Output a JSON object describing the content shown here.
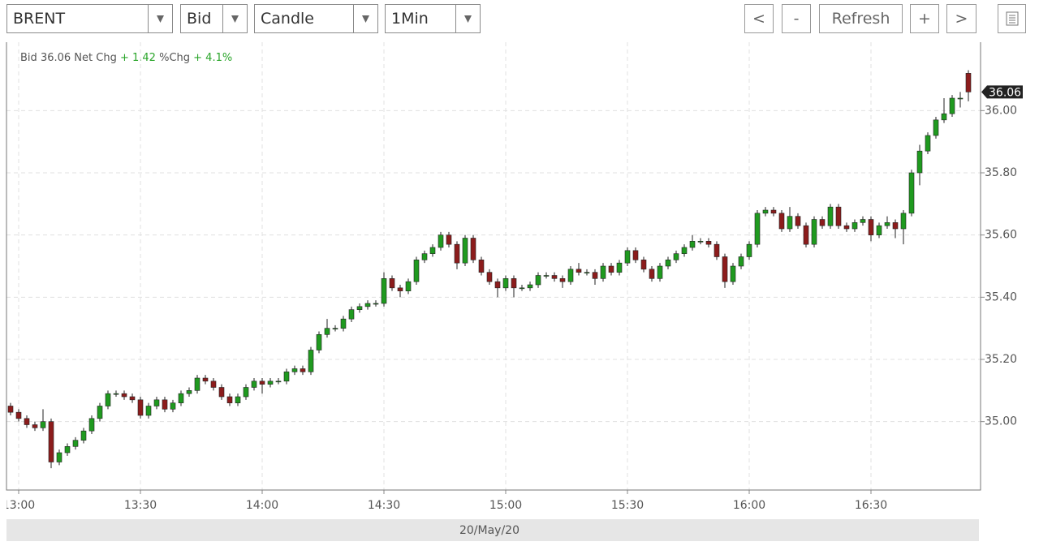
{
  "toolbar": {
    "symbol": "BRENT",
    "side": "Bid",
    "style": "Candle",
    "interval": "1Min",
    "buttons": [
      "<",
      "-",
      "Refresh",
      "+",
      ">"
    ]
  },
  "chart_data": {
    "type": "candlestick",
    "header": {
      "bid_label": "Bid",
      "bid": "36.06",
      "net_chg_label": "Net Chg",
      "net_chg": "+ 1.42",
      "pct_chg_label": "%Chg",
      "pct_chg": "+ 4.1%"
    },
    "x_label": "20/May/20",
    "last_price": 36.06,
    "up_color": "#1f9a1f",
    "down_color": "#8c1c1c",
    "grid": true,
    "xlim": [
      777,
      1017
    ],
    "xticks": [
      {
        "value": 780,
        "label": "13:00"
      },
      {
        "value": 810,
        "label": "13:30"
      },
      {
        "value": 840,
        "label": "14:00"
      },
      {
        "value": 870,
        "label": "14:30"
      },
      {
        "value": 900,
        "label": "15:00"
      },
      {
        "value": 930,
        "label": "15:30"
      },
      {
        "value": 960,
        "label": "16:00"
      },
      {
        "value": 990,
        "label": "16:30"
      }
    ],
    "ylim": [
      34.78,
      36.22
    ],
    "yticks": [
      {
        "value": 35,
        "label": "35.00"
      },
      {
        "value": 35.2,
        "label": "35.20"
      },
      {
        "value": 35.4,
        "label": "35.40"
      },
      {
        "value": 35.6,
        "label": "35.60"
      },
      {
        "value": 35.8,
        "label": "35.80"
      },
      {
        "value": 36,
        "label": "36.00"
      }
    ],
    "x": [
      778,
      780,
      782,
      784,
      786,
      788,
      790,
      792,
      794,
      796,
      798,
      800,
      802,
      804,
      806,
      808,
      810,
      812,
      814,
      816,
      818,
      820,
      822,
      824,
      826,
      828,
      830,
      832,
      834,
      836,
      838,
      840,
      842,
      844,
      846,
      848,
      850,
      852,
      854,
      856,
      858,
      860,
      862,
      864,
      866,
      868,
      870,
      872,
      874,
      876,
      878,
      880,
      882,
      884,
      886,
      888,
      890,
      892,
      894,
      896,
      898,
      900,
      902,
      904,
      906,
      908,
      910,
      912,
      914,
      916,
      918,
      920,
      922,
      924,
      926,
      928,
      930,
      932,
      934,
      936,
      938,
      940,
      942,
      944,
      946,
      948,
      950,
      952,
      954,
      956,
      958,
      960,
      962,
      964,
      966,
      968,
      970,
      972,
      974,
      976,
      978,
      980,
      982,
      984,
      986,
      988,
      990,
      992,
      994,
      996,
      998,
      1000,
      1002,
      1004,
      1006,
      1008,
      1010,
      1012,
      1014
    ],
    "open": [
      35.05,
      35.03,
      35.01,
      34.99,
      34.98,
      35.0,
      34.87,
      34.9,
      34.92,
      34.94,
      34.97,
      35.01,
      35.05,
      35.09,
      35.09,
      35.08,
      35.07,
      35.02,
      35.05,
      35.07,
      35.04,
      35.06,
      35.09,
      35.1,
      35.14,
      35.13,
      35.11,
      35.08,
      35.06,
      35.08,
      35.11,
      35.13,
      35.12,
      35.13,
      35.13,
      35.16,
      35.17,
      35.16,
      35.23,
      35.28,
      35.3,
      35.3,
      35.33,
      35.36,
      35.37,
      35.38,
      35.38,
      35.46,
      35.43,
      35.42,
      35.45,
      35.52,
      35.54,
      35.56,
      35.6,
      35.57,
      35.51,
      35.59,
      35.52,
      35.48,
      35.45,
      35.43,
      35.46,
      35.43,
      35.43,
      35.44,
      35.47,
      35.47,
      35.46,
      35.45,
      35.49,
      35.48,
      35.48,
      35.46,
      35.5,
      35.48,
      35.51,
      35.55,
      35.52,
      35.49,
      35.46,
      35.5,
      35.52,
      35.54,
      35.56,
      35.58,
      35.58,
      35.57,
      35.53,
      35.45,
      35.5,
      35.53,
      35.57,
      35.67,
      35.68,
      35.67,
      35.62,
      35.66,
      35.63,
      35.57,
      35.65,
      35.63,
      35.69,
      35.63,
      35.62,
      35.64,
      35.65,
      35.6,
      35.63,
      35.64,
      35.62,
      35.67,
      35.8,
      35.87,
      35.92,
      35.97,
      35.99,
      36.04,
      36.12
    ],
    "high": [
      35.06,
      35.04,
      35.02,
      35.0,
      35.04,
      35.01,
      34.91,
      34.93,
      34.95,
      34.98,
      35.02,
      35.06,
      35.1,
      35.1,
      35.1,
      35.09,
      35.08,
      35.06,
      35.08,
      35.08,
      35.07,
      35.1,
      35.11,
      35.15,
      35.15,
      35.14,
      35.12,
      35.09,
      35.09,
      35.12,
      35.14,
      35.14,
      35.14,
      35.14,
      35.17,
      35.18,
      35.18,
      35.24,
      35.29,
      35.33,
      35.31,
      35.34,
      35.37,
      35.38,
      35.39,
      35.39,
      35.48,
      35.47,
      35.44,
      35.46,
      35.53,
      35.55,
      35.57,
      35.61,
      35.61,
      35.58,
      35.6,
      35.6,
      35.53,
      35.49,
      35.46,
      35.47,
      35.47,
      35.44,
      35.45,
      35.48,
      35.48,
      35.48,
      35.47,
      35.5,
      35.51,
      35.49,
      35.49,
      35.51,
      35.51,
      35.52,
      35.56,
      35.56,
      35.53,
      35.5,
      35.51,
      35.53,
      35.55,
      35.57,
      35.6,
      35.59,
      35.59,
      35.58,
      35.54,
      35.51,
      35.54,
      35.58,
      35.68,
      35.69,
      35.69,
      35.68,
      35.69,
      35.67,
      35.64,
      35.66,
      35.66,
      35.7,
      35.7,
      35.64,
      35.65,
      35.66,
      35.66,
      35.64,
      35.66,
      35.65,
      35.68,
      35.81,
      35.89,
      35.93,
      35.98,
      36.04,
      36.05,
      36.06,
      36.13
    ],
    "low": [
      35.02,
      35.0,
      34.98,
      34.97,
      34.97,
      34.85,
      34.86,
      34.89,
      34.91,
      34.93,
      34.96,
      35.0,
      35.04,
      35.08,
      35.07,
      35.06,
      35.01,
      35.01,
      35.04,
      35.03,
      35.03,
      35.05,
      35.08,
      35.09,
      35.12,
      35.1,
      35.07,
      35.05,
      35.05,
      35.07,
      35.1,
      35.09,
      35.11,
      35.12,
      35.12,
      35.15,
      35.15,
      35.15,
      35.22,
      35.27,
      35.29,
      35.29,
      35.32,
      35.35,
      35.36,
      35.37,
      35.37,
      35.42,
      35.4,
      35.41,
      35.44,
      35.51,
      35.53,
      35.55,
      35.56,
      35.49,
      35.5,
      35.51,
      35.47,
      35.44,
      35.4,
      35.42,
      35.4,
      35.42,
      35.42,
      35.43,
      35.46,
      35.45,
      35.43,
      35.44,
      35.47,
      35.47,
      35.44,
      35.45,
      35.47,
      35.47,
      35.5,
      35.51,
      35.48,
      35.45,
      35.45,
      35.49,
      35.51,
      35.53,
      35.55,
      35.57,
      35.56,
      35.52,
      35.43,
      35.44,
      35.49,
      35.52,
      35.56,
      35.66,
      35.66,
      35.61,
      35.61,
      35.62,
      35.56,
      35.56,
      35.62,
      35.62,
      35.62,
      35.61,
      35.61,
      35.63,
      35.58,
      35.59,
      35.62,
      35.59,
      35.57,
      35.66,
      35.76,
      35.86,
      35.91,
      35.96,
      35.98,
      36.01,
      36.03
    ],
    "close": [
      35.03,
      35.01,
      34.99,
      34.98,
      35.0,
      34.87,
      34.9,
      34.92,
      34.94,
      34.97,
      35.01,
      35.05,
      35.09,
      35.09,
      35.08,
      35.07,
      35.02,
      35.05,
      35.07,
      35.04,
      35.06,
      35.09,
      35.1,
      35.14,
      35.13,
      35.11,
      35.08,
      35.06,
      35.08,
      35.11,
      35.13,
      35.12,
      35.13,
      35.13,
      35.16,
      35.17,
      35.16,
      35.23,
      35.28,
      35.3,
      35.3,
      35.33,
      35.36,
      35.37,
      35.38,
      35.38,
      35.46,
      35.43,
      35.42,
      35.45,
      35.52,
      35.54,
      35.56,
      35.6,
      35.57,
      35.51,
      35.59,
      35.52,
      35.48,
      35.45,
      35.43,
      35.46,
      35.43,
      35.43,
      35.44,
      35.47,
      35.47,
      35.46,
      35.45,
      35.49,
      35.48,
      35.48,
      35.46,
      35.5,
      35.48,
      35.51,
      35.55,
      35.52,
      35.49,
      35.46,
      35.5,
      35.52,
      35.54,
      35.56,
      35.58,
      35.58,
      35.57,
      35.53,
      35.45,
      35.5,
      35.53,
      35.57,
      35.67,
      35.68,
      35.67,
      35.62,
      35.66,
      35.63,
      35.57,
      35.65,
      35.63,
      35.69,
      35.63,
      35.62,
      35.64,
      35.65,
      35.6,
      35.63,
      35.64,
      35.62,
      35.67,
      35.8,
      35.87,
      35.92,
      35.97,
      35.99,
      36.04,
      36.04,
      36.06
    ]
  }
}
